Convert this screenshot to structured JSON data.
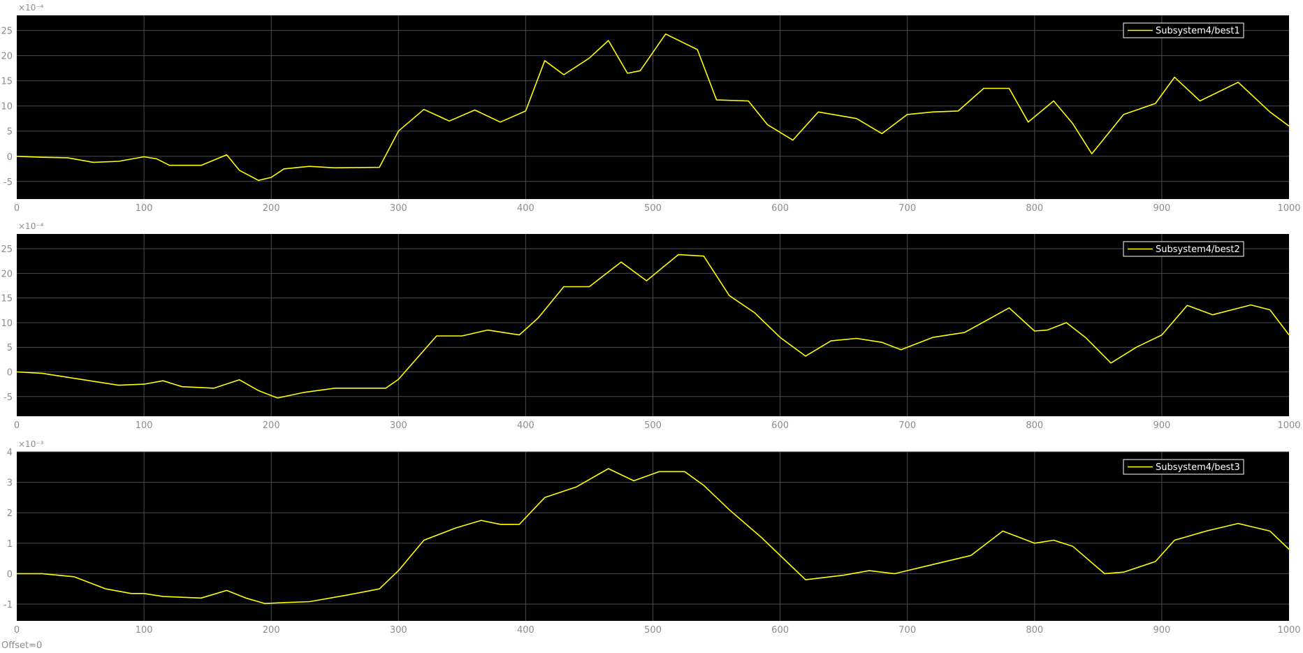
{
  "footer": {
    "offset_label": "Offset=0"
  },
  "theme": {
    "axes_bg": "#000000",
    "grid": "#4d4d4d",
    "tick_text": "#8c8c8c",
    "line": "#ffff00",
    "legend_text": "#ffffff"
  },
  "chart_data": [
    {
      "type": "line",
      "exponent_label": "×10⁻⁴",
      "xlim": [
        0,
        1000
      ],
      "ylim": [
        -8.5,
        28
      ],
      "xticks": [
        "0",
        "100",
        "200",
        "300",
        "400",
        "500",
        "600",
        "700",
        "800",
        "900",
        "1000"
      ],
      "yticks": [
        "-5",
        "0",
        "5",
        "10",
        "15",
        "20",
        "25"
      ],
      "grid": true,
      "legend_position": "top-right",
      "series": [
        {
          "name": "Subsystem4/best1",
          "x": [
            0,
            20,
            40,
            60,
            80,
            100,
            110,
            120,
            145,
            165,
            175,
            190,
            200,
            210,
            230,
            250,
            285,
            300,
            320,
            340,
            360,
            380,
            400,
            415,
            430,
            450,
            465,
            480,
            490,
            510,
            535,
            550,
            575,
            590,
            610,
            630,
            660,
            680,
            700,
            720,
            740,
            760,
            780,
            795,
            815,
            830,
            845,
            870,
            895,
            910,
            930,
            960,
            985,
            1000
          ],
          "values": [
            0,
            -0.2,
            -0.3,
            -1.2,
            -1,
            -0.1,
            -0.5,
            -1.8,
            -1.8,
            0.3,
            -2.8,
            -4.8,
            -4.2,
            -2.5,
            -2,
            -2.3,
            -2.2,
            5,
            9.3,
            7,
            9.2,
            6.8,
            9,
            19,
            16.2,
            19.5,
            23,
            16.5,
            17,
            24.3,
            21.2,
            11.2,
            11,
            6.3,
            3.2,
            8.8,
            7.5,
            4.5,
            8.3,
            8.8,
            9,
            13.5,
            13.5,
            6.8,
            11,
            6.5,
            0.5,
            8.3,
            10.5,
            15.7,
            11,
            14.7,
            8.8,
            6
          ]
        }
      ]
    },
    {
      "type": "line",
      "exponent_label": "×10⁻⁴",
      "xlim": [
        0,
        1000
      ],
      "ylim": [
        -9,
        28
      ],
      "xticks": [
        "0",
        "100",
        "200",
        "300",
        "400",
        "500",
        "600",
        "700",
        "800",
        "900",
        "1000"
      ],
      "yticks": [
        "-5",
        "0",
        "5",
        "10",
        "15",
        "20",
        "25"
      ],
      "grid": true,
      "legend_position": "top-right",
      "series": [
        {
          "name": "Subsystem4/best2",
          "x": [
            0,
            20,
            50,
            80,
            100,
            115,
            130,
            155,
            175,
            190,
            205,
            225,
            250,
            290,
            300,
            330,
            350,
            370,
            395,
            410,
            430,
            450,
            475,
            495,
            520,
            540,
            560,
            580,
            600,
            620,
            640,
            660,
            680,
            695,
            720,
            745,
            780,
            800,
            810,
            825,
            840,
            860,
            880,
            900,
            920,
            940,
            970,
            985,
            1000
          ],
          "values": [
            0,
            -0.3,
            -1.5,
            -2.7,
            -2.5,
            -1.8,
            -3,
            -3.3,
            -1.6,
            -3.8,
            -5.3,
            -4.2,
            -3.3,
            -3.3,
            -1.5,
            7.3,
            7.3,
            8.5,
            7.5,
            11,
            17.3,
            17.3,
            22.3,
            18.5,
            23.8,
            23.5,
            15.5,
            12,
            7,
            3.2,
            6.3,
            6.8,
            6,
            4.5,
            7,
            8,
            13,
            8.3,
            8.5,
            10,
            7,
            1.8,
            5,
            7.5,
            13.5,
            11.6,
            13.6,
            12.6,
            7.5
          ]
        }
      ]
    },
    {
      "type": "line",
      "exponent_label": "×10⁻³",
      "xlim": [
        0,
        1000
      ],
      "ylim": [
        -1.55,
        4
      ],
      "xticks": [
        "0",
        "100",
        "200",
        "300",
        "400",
        "500",
        "600",
        "700",
        "800",
        "900",
        "1000"
      ],
      "yticks": [
        "-1",
        "0",
        "1",
        "2",
        "3",
        "4"
      ],
      "grid": true,
      "legend_position": "top-right",
      "series": [
        {
          "name": "Subsystem4/best3",
          "x": [
            0,
            20,
            45,
            70,
            90,
            100,
            115,
            145,
            165,
            180,
            195,
            210,
            230,
            260,
            285,
            300,
            320,
            345,
            365,
            380,
            395,
            415,
            440,
            465,
            485,
            505,
            525,
            540,
            560,
            585,
            605,
            620,
            650,
            670,
            690,
            720,
            750,
            775,
            800,
            815,
            830,
            855,
            870,
            895,
            910,
            935,
            960,
            985,
            1000
          ],
          "values": [
            0,
            0,
            -0.1,
            -0.5,
            -0.65,
            -0.65,
            -0.75,
            -0.8,
            -0.55,
            -0.8,
            -0.98,
            -0.95,
            -0.92,
            -0.7,
            -0.5,
            0.1,
            1.1,
            1.5,
            1.75,
            1.62,
            1.62,
            2.5,
            2.85,
            3.45,
            3.05,
            3.35,
            3.35,
            2.9,
            2.1,
            1.2,
            0.4,
            -0.2,
            -0.05,
            0.1,
            0,
            0.3,
            0.6,
            1.4,
            1,
            1.1,
            0.9,
            0,
            0.05,
            0.4,
            1.1,
            1.4,
            1.65,
            1.4,
            0.8
          ]
        }
      ]
    }
  ]
}
